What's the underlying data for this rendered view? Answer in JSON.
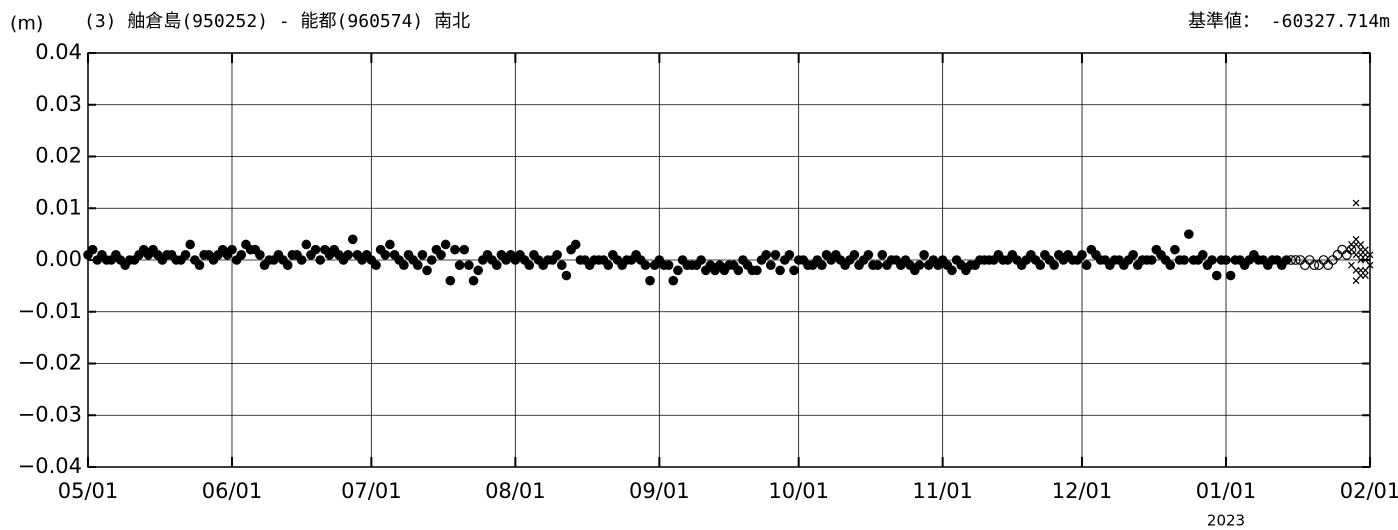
{
  "chart_data": {
    "type": "scatter",
    "title": "(3) 舳倉島(950252) - 能都(960574) 南北",
    "y_unit": "(m)",
    "reference_value": "基準値： -60327.714m",
    "year_label": "2023",
    "xlim": [
      "05/01",
      "02/01"
    ],
    "xticks": [
      "05/01",
      "06/01",
      "07/01",
      "08/01",
      "09/01",
      "10/01",
      "11/01",
      "12/01",
      "01/01",
      "02/01"
    ],
    "ylim": [
      -0.04,
      0.04
    ],
    "yticks": [
      {
        "value": -0.04,
        "label": "−0.04"
      },
      {
        "value": -0.03,
        "label": "−0.03"
      },
      {
        "value": -0.02,
        "label": "−0.02"
      },
      {
        "value": -0.01,
        "label": "−0.01"
      },
      {
        "value": 0,
        "label": "0.00"
      },
      0.01,
      0.02,
      0.03,
      0.04
    ],
    "grid": true,
    "series": [
      {
        "marker": "filled-circle",
        "color": "#000000",
        "x": [
          "05/01",
          "05/02",
          "05/03",
          "05/04",
          "05/05",
          "05/06",
          "05/07",
          "05/08",
          "05/09",
          "05/10",
          "05/11",
          "05/12",
          "05/13",
          "05/14",
          "05/15",
          "05/16",
          "05/17",
          "05/18",
          "05/19",
          "05/20",
          "05/21",
          "05/22",
          "05/23",
          "05/24",
          "05/25",
          "05/26",
          "05/27",
          "05/28",
          "05/29",
          "05/30",
          "05/31",
          "06/01",
          "06/02",
          "06/03",
          "06/04",
          "06/05",
          "06/06",
          "06/07",
          "06/08",
          "06/09",
          "06/10",
          "06/11",
          "06/12",
          "06/13",
          "06/14",
          "06/15",
          "06/16",
          "06/17",
          "06/18",
          "06/19",
          "06/20",
          "06/21",
          "06/22",
          "06/23",
          "06/24",
          "06/25",
          "06/26",
          "06/27",
          "06/28",
          "06/29",
          "06/30",
          "07/01",
          "07/02",
          "07/03",
          "07/04",
          "07/05",
          "07/06",
          "07/07",
          "07/08",
          "07/09",
          "07/10",
          "07/11",
          "07/12",
          "07/13",
          "07/14",
          "07/15",
          "07/16",
          "07/17",
          "07/18",
          "07/19",
          "07/20",
          "07/21",
          "07/22",
          "07/23",
          "07/24",
          "07/25",
          "07/26",
          "07/27",
          "07/28",
          "07/29",
          "07/30",
          "07/31",
          "08/01",
          "08/02",
          "08/03",
          "08/04",
          "08/05",
          "08/06",
          "08/07",
          "08/08",
          "08/09",
          "08/10",
          "08/11",
          "08/12",
          "08/13",
          "08/14",
          "08/15",
          "08/16",
          "08/17",
          "08/18",
          "08/19",
          "08/20",
          "08/21",
          "08/22",
          "08/23",
          "08/24",
          "08/25",
          "08/26",
          "08/27",
          "08/28",
          "08/29",
          "08/30",
          "08/31",
          "09/01",
          "09/02",
          "09/03",
          "09/04",
          "09/05",
          "09/06",
          "09/07",
          "09/08",
          "09/09",
          "09/10",
          "09/11",
          "09/12",
          "09/13",
          "09/14",
          "09/15",
          "09/16",
          "09/17",
          "09/18",
          "09/19",
          "09/20",
          "09/21",
          "09/22",
          "09/23",
          "09/24",
          "09/25",
          "09/26",
          "09/27",
          "09/28",
          "09/29",
          "09/30",
          "10/01",
          "10/02",
          "10/03",
          "10/04",
          "10/05",
          "10/06",
          "10/07",
          "10/08",
          "10/09",
          "10/10",
          "10/11",
          "10/12",
          "10/13",
          "10/14",
          "10/15",
          "10/16",
          "10/17",
          "10/18",
          "10/19",
          "10/20",
          "10/21",
          "10/22",
          "10/23",
          "10/24",
          "10/25",
          "10/26",
          "10/27",
          "10/28",
          "10/29",
          "10/30",
          "10/31",
          "11/01",
          "11/02",
          "11/03",
          "11/04",
          "11/05",
          "11/06",
          "11/07",
          "11/08",
          "11/09",
          "11/10",
          "11/11",
          "11/12",
          "11/13",
          "11/14",
          "11/15",
          "11/16",
          "11/17",
          "11/18",
          "11/19",
          "11/20",
          "11/21",
          "11/22",
          "11/23",
          "11/24",
          "11/25",
          "11/26",
          "11/27",
          "11/28",
          "11/29",
          "11/30",
          "12/01",
          "12/02",
          "12/03",
          "12/04",
          "12/05",
          "12/06",
          "12/07",
          "12/08",
          "12/09",
          "12/10",
          "12/11",
          "12/12",
          "12/13",
          "12/14",
          "12/15",
          "12/16",
          "12/17",
          "12/18",
          "12/19",
          "12/20",
          "12/21",
          "12/22",
          "12/23",
          "12/24",
          "12/25",
          "12/26",
          "12/27",
          "12/28",
          "12/29",
          "12/30",
          "12/31",
          "01/01",
          "01/02",
          "01/03",
          "01/04",
          "01/05",
          "01/06",
          "01/07",
          "01/08",
          "01/09",
          "01/10",
          "01/11",
          "01/12",
          "01/13",
          "01/14"
        ],
        "values": [
          0.001,
          0.002,
          0,
          0.001,
          0,
          0,
          0.001,
          0,
          -0.001,
          0,
          0,
          0.001,
          0.002,
          0.001,
          0.002,
          0.001,
          0,
          0.001,
          0.001,
          0,
          0,
          0.001,
          0.003,
          0,
          -0.001,
          0.001,
          0.001,
          0,
          0.001,
          0.002,
          0.001,
          0.002,
          0,
          0.001,
          0.003,
          0.002,
          0.002,
          0.001,
          -0.001,
          0,
          0,
          0.001,
          0,
          -0.001,
          0.001,
          0.001,
          0,
          0.003,
          0.001,
          0.002,
          0,
          0.002,
          0.001,
          0.002,
          0.001,
          0,
          0.001,
          0.004,
          0.001,
          0,
          0.001,
          0,
          -0.001,
          0.002,
          0.001,
          0.003,
          0.001,
          0,
          -0.001,
          0.001,
          0,
          -0.001,
          0.001,
          -0.002,
          0,
          0.002,
          0.001,
          0.003,
          -0.004,
          0.002,
          -0.001,
          0.002,
          -0.001,
          -0.004,
          -0.002,
          0,
          0.001,
          0,
          -0.001,
          0.001,
          0,
          0.001,
          0,
          0.001,
          0,
          -0.001,
          0.001,
          0,
          -0.001,
          0,
          0,
          0.001,
          -0.001,
          -0.003,
          0.002,
          0.003,
          0,
          0,
          -0.001,
          0,
          0,
          0,
          -0.001,
          0.001,
          0,
          -0.001,
          0,
          0,
          0.001,
          0,
          -0.001,
          -0.004,
          -0.001,
          0,
          -0.001,
          -0.001,
          -0.004,
          -0.002,
          0,
          -0.001,
          -0.001,
          -0.001,
          0,
          -0.002,
          -0.001,
          -0.002,
          -0.001,
          -0.002,
          -0.001,
          -0.001,
          -0.002,
          0,
          -0.001,
          -0.002,
          -0.002,
          0,
          0.001,
          -0.001,
          0.001,
          -0.002,
          0,
          0.001,
          -0.002,
          0,
          0,
          -0.001,
          -0.001,
          0,
          -0.001,
          0.001,
          0,
          0.001,
          0,
          -0.001,
          0,
          0.001,
          -0.001,
          0,
          0.001,
          -0.001,
          -0.001,
          0.001,
          -0.001,
          0,
          0,
          -0.001,
          0,
          -0.001,
          -0.002,
          -0.001,
          0.001,
          -0.001,
          0,
          -0.001,
          0,
          -0.001,
          -0.002,
          0,
          -0.001,
          -0.002,
          -0.001,
          -0.001,
          0,
          0,
          0,
          0,
          0.001,
          0,
          0,
          0.001,
          0,
          -0.001,
          0,
          0.001,
          0,
          -0.001,
          0.001,
          0,
          -0.001,
          0.001,
          0,
          0.001,
          0,
          0,
          0.001,
          -0.001,
          0.002,
          0.001,
          0,
          0,
          -0.001,
          0,
          0,
          -0.001,
          0,
          0.001,
          -0.001,
          0,
          0,
          0,
          0.002,
          0.001,
          0,
          -0.001,
          0.002,
          0,
          0,
          0.005,
          0,
          0,
          0.001,
          -0.001,
          0,
          -0.003,
          0,
          0,
          -0.003,
          0,
          0,
          -0.001,
          0,
          0.001,
          0,
          0,
          -0.001,
          0,
          0,
          -0.001,
          0
        ]
      },
      {
        "marker": "open-circle",
        "color": "#000000",
        "x": [
          "01/15",
          "01/16",
          "01/17",
          "01/18",
          "01/19",
          "01/20",
          "01/21",
          "01/22",
          "01/23",
          "01/24",
          "01/25",
          "01/26",
          "01/27",
          "01/28"
        ],
        "values": [
          0,
          0,
          0,
          -0.001,
          0,
          -0.001,
          -0.001,
          0,
          -0.001,
          0,
          0.001,
          0.002,
          0.001,
          0.002
        ]
      },
      {
        "marker": "cross",
        "color": "#000000",
        "x": [
          "01/28",
          "01/28",
          "01/28",
          "01/29",
          "01/29",
          "01/29",
          "01/29",
          "01/29",
          "01/29",
          "01/30",
          "01/30",
          "01/30",
          "01/30",
          "01/30",
          "01/30",
          "01/31",
          "01/31",
          "01/31",
          "01/31",
          "01/31",
          "02/01",
          "02/01"
        ],
        "values": [
          0.002,
          0.003,
          -0.001,
          0.011,
          0.003,
          -0.002,
          -0.004,
          0.004,
          0.001,
          0.002,
          -0.002,
          0,
          0.003,
          -0.003,
          0.001,
          0,
          -0.002,
          0.001,
          -0.003,
          0.002,
          0.001,
          -0.001
        ]
      }
    ]
  }
}
